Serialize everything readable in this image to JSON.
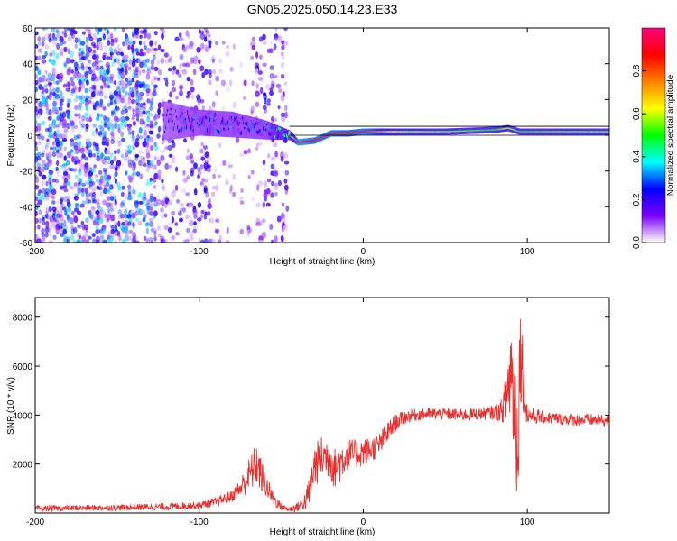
{
  "title": "GN05.2025.050.14.23.E33",
  "chart_data": [
    {
      "type": "heatmap",
      "title": "GN05.2025.050.14.23.E33",
      "xlabel": "Height of straight line (km)",
      "ylabel": "Frequency (Hz)",
      "xlim": [
        -200,
        150
      ],
      "ylim": [
        -60,
        60
      ],
      "x_ticks": [
        -200,
        -100,
        0,
        100
      ],
      "y_ticks": [
        -60,
        -40,
        -20,
        0,
        20,
        40,
        60
      ],
      "grid": false,
      "colorbar": {
        "label": "Normalized spectral amplitude",
        "range": [
          0,
          1
        ],
        "ticks": [
          0.0,
          0.2,
          0.4,
          0.6,
          0.8
        ],
        "colormap": [
          "#ffffff",
          "#7a00ff",
          "#0000ff",
          "#00ffff",
          "#00ff00",
          "#ffff00",
          "#ff8000",
          "#ff0000",
          "#ff0080"
        ]
      },
      "ridge": {
        "description_x": [
          -120,
          -100,
          -80,
          -60,
          -45,
          -40,
          -30,
          -20,
          -10,
          0,
          20,
          50,
          80,
          88,
          95,
          120,
          150
        ],
        "frequency_hz": [
          8,
          7,
          6,
          3,
          0,
          -4,
          -3,
          1,
          1,
          2,
          2,
          2,
          3,
          4,
          2,
          2,
          2
        ],
        "amplitude": [
          0.25,
          0.3,
          0.3,
          0.3,
          0.5,
          0.9,
          0.85,
          0.85,
          0.8,
          0.85,
          0.6,
          0.55,
          0.5,
          0.6,
          0.5,
          0.55,
          0.55
        ],
        "band_half_width_hz": [
          12,
          8,
          8,
          6,
          3,
          2,
          2,
          2,
          2,
          2,
          2,
          2,
          2,
          2,
          2,
          2,
          2
        ]
      },
      "noise_regions": [
        {
          "x_range": [
            -200,
            -125
          ],
          "level": "high"
        },
        {
          "x_range": [
            -125,
            -90
          ],
          "level": "medium"
        },
        {
          "x_range": [
            -90,
            -65
          ],
          "level": "low"
        },
        {
          "x_range": [
            -65,
            -45
          ],
          "level": "medium"
        }
      ],
      "reference_lines_hz": [
        0,
        5
      ]
    },
    {
      "type": "line",
      "xlabel": "Height of straight line (km)",
      "ylabel": "SNR (10 * v/v)",
      "xlim": [
        -200,
        150
      ],
      "ylim": [
        0,
        8800
      ],
      "x_ticks": [
        -200,
        -100,
        0,
        100
      ],
      "y_ticks": [
        2000,
        4000,
        6000,
        8000
      ],
      "grid": false,
      "series": [
        {
          "color": "#e8312f",
          "x": [
            -200,
            -180,
            -150,
            -120,
            -100,
            -90,
            -80,
            -75,
            -70,
            -65,
            -62,
            -60,
            -55,
            -50,
            -45,
            -40,
            -35,
            -32,
            -30,
            -25,
            -20,
            -18,
            -15,
            -10,
            -5,
            0,
            5,
            10,
            15,
            20,
            25,
            30,
            40,
            50,
            60,
            70,
            80,
            85,
            88,
            90,
            92,
            94,
            96,
            98,
            100,
            110,
            120,
            130,
            140,
            150
          ],
          "y": [
            180,
            200,
            220,
            260,
            320,
            450,
            700,
            1000,
            1500,
            2000,
            1500,
            1200,
            600,
            250,
            150,
            250,
            500,
            1100,
            1900,
            2300,
            2300,
            1800,
            2000,
            2400,
            2400,
            2500,
            2600,
            2800,
            3300,
            3700,
            3900,
            4000,
            4050,
            4050,
            4000,
            4050,
            4100,
            4200,
            5000,
            6000,
            4500,
            3000,
            7000,
            5000,
            4000,
            3900,
            3850,
            3800,
            3800,
            3750
          ],
          "noise_amplitude": [
            120,
            120,
            120,
            150,
            150,
            180,
            250,
            400,
            700,
            900,
            700,
            500,
            300,
            150,
            120,
            200,
            400,
            700,
            900,
            900,
            900,
            800,
            900,
            700,
            600,
            600,
            500,
            500,
            450,
            350,
            300,
            250,
            250,
            250,
            250,
            250,
            300,
            500,
            1500,
            2500,
            2500,
            3000,
            2500,
            1000,
            400,
            250,
            250,
            250,
            250,
            250
          ]
        }
      ]
    }
  ]
}
